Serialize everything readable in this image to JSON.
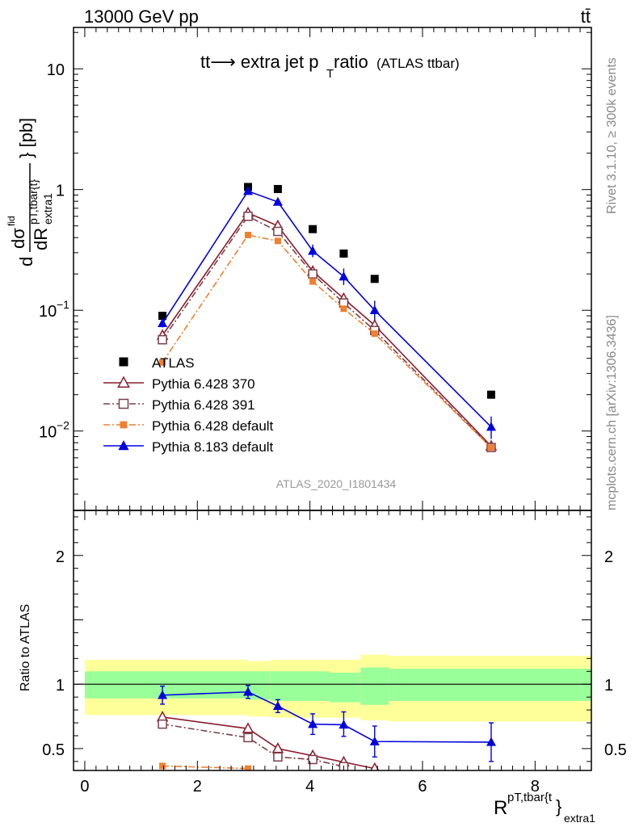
{
  "header": {
    "left_title": "13000 GeV pp",
    "right_title": "tt̄"
  },
  "side_labels": {
    "rivet": "Rivet 3.1.10, ≥ 300k events",
    "mcplots": "mcplots.cern.ch [arXiv:1306.3436]"
  },
  "analysis_label": "ATLAS_2020_I1801434",
  "chart_data": [
    {
      "type": "scatter",
      "panel": "main",
      "title_main": "tt⟶ extra jet p",
      "title_sub": "T",
      "title_rest": " ratio",
      "title_small": "(ATLAS ttbar)",
      "ylabel": "d dσ^{fid} / dR^{pT,tbar{t}}_{extra1} } [pb]",
      "ylabel_parts": {
        "d": "d",
        "num": "dσ",
        "num_sup": "fid",
        "den": "dR",
        "den_sup": "pT,tbar{t}",
        "den_sub": "extra1",
        "unit": "} [pb]"
      },
      "yscale": "log",
      "ylim": [
        0.0022,
        22
      ],
      "xlim": [
        -0.2,
        9.0
      ],
      "ytick_labels": [
        {
          "value": 10,
          "label": "10"
        },
        {
          "value": 1,
          "label": "1"
        },
        {
          "value": 0.1,
          "label": "10",
          "exp": "−1"
        },
        {
          "value": 0.01,
          "label": "10",
          "exp": "−2"
        }
      ],
      "series": [
        {
          "name": "ATLAS",
          "color": "#000000",
          "marker": "square-filled",
          "line": "none",
          "x": [
            1.38,
            2.9,
            3.43,
            4.05,
            4.6,
            5.15,
            7.22
          ],
          "y": [
            0.09,
            1.05,
            1.01,
            0.47,
            0.295,
            0.182,
            0.02
          ]
        },
        {
          "name": "Pythia 6.428 370",
          "color": "#8b1a2b",
          "marker": "triangle-open",
          "line": "solid",
          "x": [
            1.38,
            2.9,
            3.43,
            4.05,
            4.6,
            5.15,
            7.22
          ],
          "y": [
            0.062,
            0.64,
            0.5,
            0.21,
            0.125,
            0.075,
            0.0075
          ]
        },
        {
          "name": "Pythia 6.428 391",
          "color": "#7a3f4a",
          "marker": "square-open",
          "line": "dashdot",
          "x": [
            1.38,
            2.9,
            3.43,
            4.05,
            4.6,
            5.15,
            7.22
          ],
          "y": [
            0.057,
            0.6,
            0.45,
            0.2,
            0.115,
            0.068,
            0.0073
          ]
        },
        {
          "name": "Pythia 6.428 default",
          "color": "#f07f2e",
          "marker": "square-filled-small",
          "line": "dashdot",
          "x": [
            1.38,
            2.9,
            3.43,
            4.05,
            4.6,
            5.15,
            7.22
          ],
          "y": [
            0.037,
            0.42,
            0.375,
            0.173,
            0.103,
            0.064,
            0.0073
          ]
        },
        {
          "name": "Pythia 8.183 default",
          "color": "#0000dd",
          "marker": "triangle-filled",
          "line": "solid",
          "x": [
            1.38,
            2.9,
            3.43,
            4.05,
            4.6,
            5.15,
            7.22
          ],
          "y": [
            0.078,
            0.97,
            0.79,
            0.31,
            0.19,
            0.1,
            0.0108
          ],
          "yerr_lo": [
            0.006,
            0.05,
            0.04,
            0.035,
            0.028,
            0.018,
            0.0022
          ],
          "yerr_hi": [
            0.006,
            0.05,
            0.04,
            0.04,
            0.032,
            0.02,
            0.0024
          ]
        }
      ]
    },
    {
      "type": "scatter",
      "panel": "ratio",
      "ylabel": "Ratio to ATLAS",
      "xlabel": "R",
      "xlabel_sup": "pT,tbar{t",
      "xlabel_brace": "}",
      "xlabel_sub": "extra1",
      "ylim": [
        0.33,
        2.35
      ],
      "xlim": [
        -0.2,
        9.0
      ],
      "xtick_labels": [
        "0",
        "2",
        "4",
        "6",
        "8"
      ],
      "ytick_labels": [
        "0.5",
        "1",
        "2"
      ],
      "bands": {
        "bin_edges": [
          0.0,
          2.9,
          3.3,
          4.35,
          4.9,
          5.4,
          9.0
        ],
        "yellow_lo": [
          0.76,
          0.75,
          0.74,
          0.74,
          0.72,
          0.63
        ],
        "yellow_hi": [
          1.19,
          1.18,
          1.19,
          1.19,
          1.23,
          1.23
        ],
        "green_lo": [
          0.89,
          0.88,
          0.87,
          0.86,
          0.84,
          0.84
        ],
        "green_hi": [
          1.1,
          1.1,
          1.1,
          1.09,
          1.13,
          1.13
        ],
        "green_hi_last": 1.12,
        "green_lo_last": 0.87,
        "yellow_hi_last": 1.22,
        "yellow_lo_last": 0.71
      },
      "series": [
        {
          "name": "Pythia 6.428 370",
          "color": "#8b1a2b",
          "marker": "triangle-open",
          "line": "solid",
          "x": [
            1.38,
            2.9,
            3.43,
            4.05,
            4.6,
            5.15
          ],
          "y": [
            0.745,
            0.655,
            0.5,
            0.445,
            0.395,
            0.345
          ]
        },
        {
          "name": "Pythia 6.428 391",
          "color": "#7a3f4a",
          "marker": "square-open",
          "line": "dashdot",
          "x": [
            1.38,
            2.9,
            3.43,
            4.05,
            4.6
          ],
          "y": [
            0.69,
            0.585,
            0.435,
            0.415,
            0.36
          ]
        },
        {
          "name": "Pythia 6.428 default",
          "color": "#f07f2e",
          "marker": "square-filled-small",
          "line": "dashdot",
          "x": [
            1.38,
            2.9
          ],
          "y": [
            0.365,
            0.345
          ]
        },
        {
          "name": "Pythia 8.183 default",
          "color": "#0000dd",
          "marker": "triangle-filled",
          "line": "solid",
          "x": [
            1.38,
            2.9,
            3.43,
            4.05,
            4.6,
            5.15,
            7.22
          ],
          "y": [
            0.915,
            0.94,
            0.83,
            0.69,
            0.685,
            0.555,
            0.55
          ],
          "yerr_lo": [
            0.07,
            0.05,
            0.05,
            0.08,
            0.09,
            0.12,
            0.15
          ],
          "yerr_hi": [
            0.07,
            0.05,
            0.05,
            0.08,
            0.1,
            0.12,
            0.15
          ]
        }
      ]
    }
  ],
  "legend": [
    {
      "label": "ATLAS"
    },
    {
      "label": "Pythia 6.428 370"
    },
    {
      "label": "Pythia 6.428 391"
    },
    {
      "label": "Pythia 6.428 default"
    },
    {
      "label": "Pythia 8.183 default"
    }
  ]
}
